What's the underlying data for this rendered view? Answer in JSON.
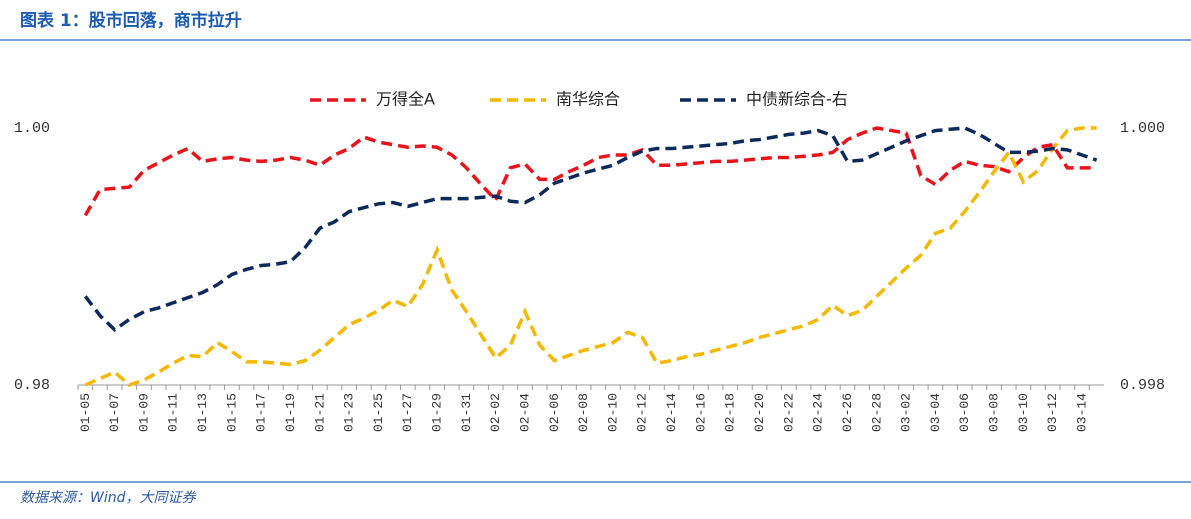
{
  "title": "图表 1：股市回落，商市拉升",
  "source": "数据来源：Wind，大同证券",
  "chart_data": {
    "type": "line",
    "categories": [
      "01-05",
      null,
      "01-07",
      null,
      "01-09",
      null,
      "01-11",
      null,
      "01-13",
      null,
      "01-15",
      null,
      "01-17",
      null,
      "01-19",
      null,
      "01-21",
      null,
      "01-23",
      null,
      "01-25",
      null,
      "01-27",
      null,
      "01-29",
      null,
      "01-31",
      null,
      "02-02",
      null,
      "02-04",
      null,
      "02-06",
      null,
      "02-08",
      null,
      "02-10",
      null,
      "02-12",
      null,
      "02-14",
      null,
      "02-16",
      null,
      "02-18",
      null,
      "02-20",
      null,
      "02-22",
      null,
      "02-24",
      null,
      "02-26",
      null,
      "02-28",
      null,
      "03-02",
      null,
      "03-04",
      null,
      "03-06",
      null,
      "03-08",
      null,
      "03-10",
      null,
      "03-12",
      null,
      "03-14",
      null
    ],
    "series": [
      {
        "name": "万得全A",
        "color": "#e8141a",
        "values": [
          0.9932,
          0.9952,
          0.9953,
          0.9954,
          0.9967,
          0.9973,
          0.9979,
          0.9984,
          0.9974,
          0.9976,
          0.9977,
          0.9975,
          0.9974,
          0.9975,
          0.9977,
          0.9975,
          0.9971,
          0.9979,
          0.9984,
          0.9993,
          0.9989,
          0.9987,
          0.9985,
          0.9986,
          0.9985,
          0.9979,
          0.9969,
          0.9956,
          0.9944,
          0.9969,
          0.9972,
          0.996,
          0.996,
          0.9966,
          0.9971,
          0.9977,
          0.9979,
          0.9979,
          0.9983,
          0.9971,
          0.9971,
          0.9972,
          0.9973,
          0.9974,
          0.9974,
          0.9975,
          0.9976,
          0.9977,
          0.9977,
          0.9978,
          0.9979,
          0.9981,
          0.9991,
          0.9996,
          1.0,
          0.9998,
          0.9996,
          0.9963,
          0.9956,
          0.9967,
          0.9974,
          0.9971,
          0.997,
          0.9966,
          0.9977,
          0.9985,
          0.9987,
          0.9969,
          0.9969,
          0.9969
        ]
      },
      {
        "name": "南华综合",
        "color": "#f5b800",
        "values": [
          0.98,
          0.9805,
          0.981,
          0.98,
          0.9804,
          0.981,
          0.9817,
          0.9823,
          0.9822,
          0.9833,
          0.9826,
          0.9818,
          0.9818,
          0.9817,
          0.9816,
          0.9819,
          0.9827,
          0.9837,
          0.9847,
          0.9852,
          0.9858,
          0.9866,
          0.9861,
          0.9878,
          0.9905,
          0.9874,
          0.9857,
          0.9839,
          0.9821,
          0.9831,
          0.9857,
          0.9831,
          0.9819,
          0.9823,
          0.9827,
          0.983,
          0.9833,
          0.9841,
          0.9837,
          0.9817,
          0.9819,
          0.9822,
          0.9824,
          0.9827,
          0.983,
          0.9833,
          0.9837,
          0.984,
          0.9843,
          0.9846,
          0.9851,
          0.9862,
          0.9854,
          0.9858,
          0.9869,
          0.988,
          0.9891,
          0.9901,
          0.9918,
          0.9922,
          0.9935,
          0.995,
          0.9966,
          0.9981,
          0.9958,
          0.9967,
          0.9984,
          0.9998,
          1.0,
          1.0
        ]
      },
      {
        "name": "中债新综合-右",
        "color": "#0d2a5c",
        "axis": "y2",
        "values": [
          0.99869,
          0.99854,
          0.99843,
          0.99851,
          0.99857,
          0.9986,
          0.99864,
          0.99868,
          0.99872,
          0.99878,
          0.99886,
          0.9989,
          0.99893,
          0.99894,
          0.99896,
          0.99907,
          0.99922,
          0.99927,
          0.99935,
          0.99938,
          0.99941,
          0.99942,
          0.99939,
          0.99942,
          0.99945,
          0.99945,
          0.99945,
          0.99946,
          0.99947,
          0.99943,
          0.99942,
          0.99948,
          0.99957,
          0.99961,
          0.99965,
          0.99968,
          0.99971,
          0.99977,
          0.99982,
          0.99984,
          0.99984,
          0.99985,
          0.99986,
          0.99987,
          0.99988,
          0.9999,
          0.99991,
          0.99993,
          0.99995,
          0.99996,
          0.99998,
          0.99994,
          0.99974,
          0.99975,
          0.9998,
          0.99985,
          0.9999,
          0.99994,
          0.99998,
          0.99999,
          1.0,
          0.99995,
          0.99988,
          0.99981,
          0.99981,
          0.99982,
          0.99984,
          0.99983,
          0.99979,
          0.99975
        ]
      }
    ],
    "ylim": [
      0.98,
      1.0
    ],
    "yticks": [
      0.98,
      {
        "value": 1.0,
        "label": "1.00"
      }
    ],
    "y2lim": [
      0.998,
      1.0
    ],
    "y2ticks": [
      0.998,
      {
        "value": 1.0,
        "label": "1.000"
      }
    ],
    "grid": false,
    "legend": "top"
  }
}
